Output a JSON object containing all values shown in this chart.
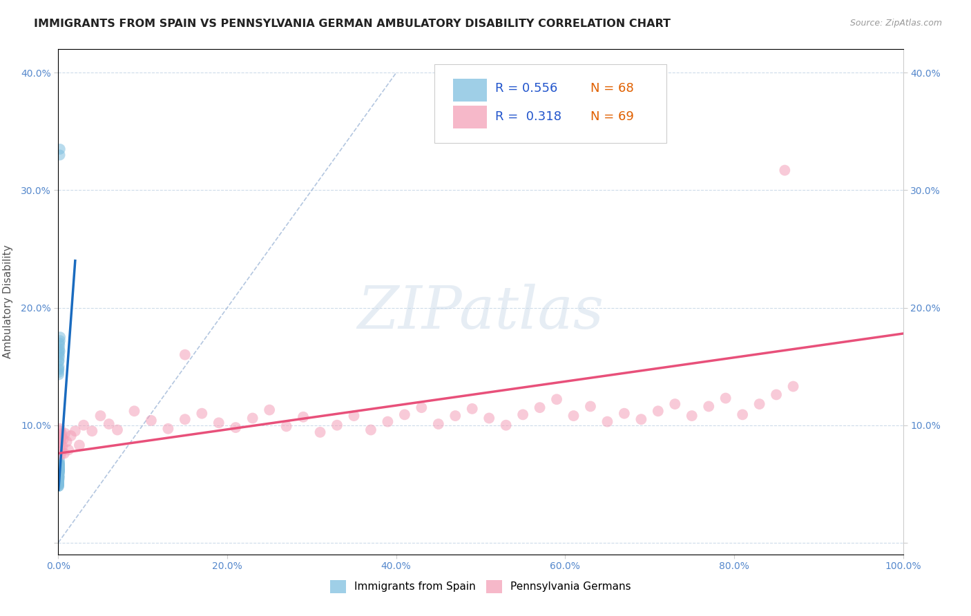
{
  "title": "IMMIGRANTS FROM SPAIN VS PENNSYLVANIA GERMAN AMBULATORY DISABILITY CORRELATION CHART",
  "source_text": "Source: ZipAtlas.com",
  "ylabel": "Ambulatory Disability",
  "xlim": [
    0,
    1.0
  ],
  "ylim": [
    -0.01,
    0.42
  ],
  "xticks": [
    0.0,
    0.2,
    0.4,
    0.6,
    0.8,
    1.0
  ],
  "xtick_labels": [
    "0.0%",
    "20.0%",
    "40.0%",
    "60.0%",
    "80.0%",
    "100.0%"
  ],
  "yticks": [
    0.0,
    0.1,
    0.2,
    0.3,
    0.4
  ],
  "ytick_labels": [
    "",
    "10.0%",
    "20.0%",
    "30.0%",
    "40.0%"
  ],
  "legend_r1": "R = 0.556",
  "legend_n1": "N = 68",
  "legend_r2": "R =  0.318",
  "legend_n2": "N = 69",
  "blue_color": "#7fbfdf",
  "pink_color": "#f4a0b8",
  "blue_line_color": "#1a6bbf",
  "pink_line_color": "#e8507a",
  "diag_color": "#a0b8d8",
  "watermark": "ZIPatlas",
  "background_color": "#ffffff",
  "blue_scatter_x": [
    0.0008,
    0.001,
    0.0005,
    0.0012,
    0.0007,
    0.0015,
    0.0006,
    0.0009,
    0.0011,
    0.0013,
    0.0004,
    0.0008,
    0.001,
    0.0007,
    0.0006,
    0.0012,
    0.0009,
    0.0011,
    0.0014,
    0.0008,
    0.001,
    0.0007,
    0.0005,
    0.0013,
    0.0009,
    0.0006,
    0.0011,
    0.0008,
    0.001,
    0.0007,
    0.0012,
    0.0006,
    0.0009,
    0.0011,
    0.0008,
    0.001,
    0.0007,
    0.0013,
    0.0005,
    0.0009,
    0.0011,
    0.0008,
    0.001,
    0.0007,
    0.0006,
    0.0012,
    0.0009,
    0.0011,
    0.0008,
    0.001,
    0.0007,
    0.0005,
    0.0013,
    0.0009,
    0.0006,
    0.0011,
    0.0008,
    0.001,
    0.0007,
    0.0012,
    0.0014,
    0.0016,
    0.002,
    0.0018,
    0.0015,
    0.0022,
    0.0019,
    0.0021
  ],
  "blue_scatter_y": [
    0.06,
    0.055,
    0.05,
    0.065,
    0.058,
    0.07,
    0.052,
    0.06,
    0.063,
    0.068,
    0.048,
    0.057,
    0.062,
    0.055,
    0.05,
    0.064,
    0.059,
    0.061,
    0.067,
    0.056,
    0.062,
    0.054,
    0.049,
    0.066,
    0.06,
    0.051,
    0.063,
    0.057,
    0.061,
    0.053,
    0.065,
    0.05,
    0.059,
    0.062,
    0.056,
    0.061,
    0.054,
    0.067,
    0.048,
    0.059,
    0.063,
    0.057,
    0.061,
    0.054,
    0.051,
    0.064,
    0.059,
    0.062,
    0.056,
    0.061,
    0.154,
    0.145,
    0.158,
    0.15,
    0.143,
    0.162,
    0.148,
    0.155,
    0.147,
    0.16,
    0.17,
    0.168,
    0.335,
    0.33,
    0.165,
    0.175,
    0.163,
    0.172
  ],
  "pink_scatter_x": [
    0.001,
    0.002,
    0.001,
    0.002,
    0.003,
    0.002,
    0.003,
    0.004,
    0.003,
    0.004,
    0.005,
    0.006,
    0.007,
    0.008,
    0.01,
    0.012,
    0.015,
    0.02,
    0.025,
    0.03,
    0.04,
    0.05,
    0.06,
    0.07,
    0.09,
    0.11,
    0.13,
    0.15,
    0.17,
    0.19,
    0.21,
    0.23,
    0.25,
    0.27,
    0.29,
    0.31,
    0.33,
    0.35,
    0.37,
    0.39,
    0.41,
    0.43,
    0.45,
    0.47,
    0.49,
    0.51,
    0.53,
    0.55,
    0.57,
    0.59,
    0.61,
    0.63,
    0.65,
    0.67,
    0.69,
    0.71,
    0.73,
    0.75,
    0.77,
    0.79,
    0.81,
    0.83,
    0.85,
    0.87,
    0.002,
    0.003,
    0.004,
    0.15,
    0.86
  ],
  "pink_scatter_y": [
    0.085,
    0.09,
    0.08,
    0.095,
    0.075,
    0.088,
    0.092,
    0.078,
    0.085,
    0.09,
    0.082,
    0.088,
    0.076,
    0.093,
    0.086,
    0.079,
    0.091,
    0.095,
    0.083,
    0.1,
    0.095,
    0.108,
    0.101,
    0.096,
    0.112,
    0.104,
    0.097,
    0.105,
    0.11,
    0.102,
    0.098,
    0.106,
    0.113,
    0.099,
    0.107,
    0.094,
    0.1,
    0.108,
    0.096,
    0.103,
    0.109,
    0.115,
    0.101,
    0.108,
    0.114,
    0.106,
    0.1,
    0.109,
    0.115,
    0.122,
    0.108,
    0.116,
    0.103,
    0.11,
    0.105,
    0.112,
    0.118,
    0.108,
    0.116,
    0.123,
    0.109,
    0.118,
    0.126,
    0.133,
    0.097,
    0.089,
    0.093,
    0.16,
    0.317
  ],
  "blue_line_x": [
    0.0003,
    0.02
  ],
  "blue_line_y": [
    0.045,
    0.24
  ],
  "pink_line_x": [
    0.0,
    1.0
  ],
  "pink_line_y": [
    0.076,
    0.178
  ],
  "ref_line_x": [
    0.0,
    0.4
  ],
  "ref_line_y": [
    0.0,
    0.4
  ]
}
